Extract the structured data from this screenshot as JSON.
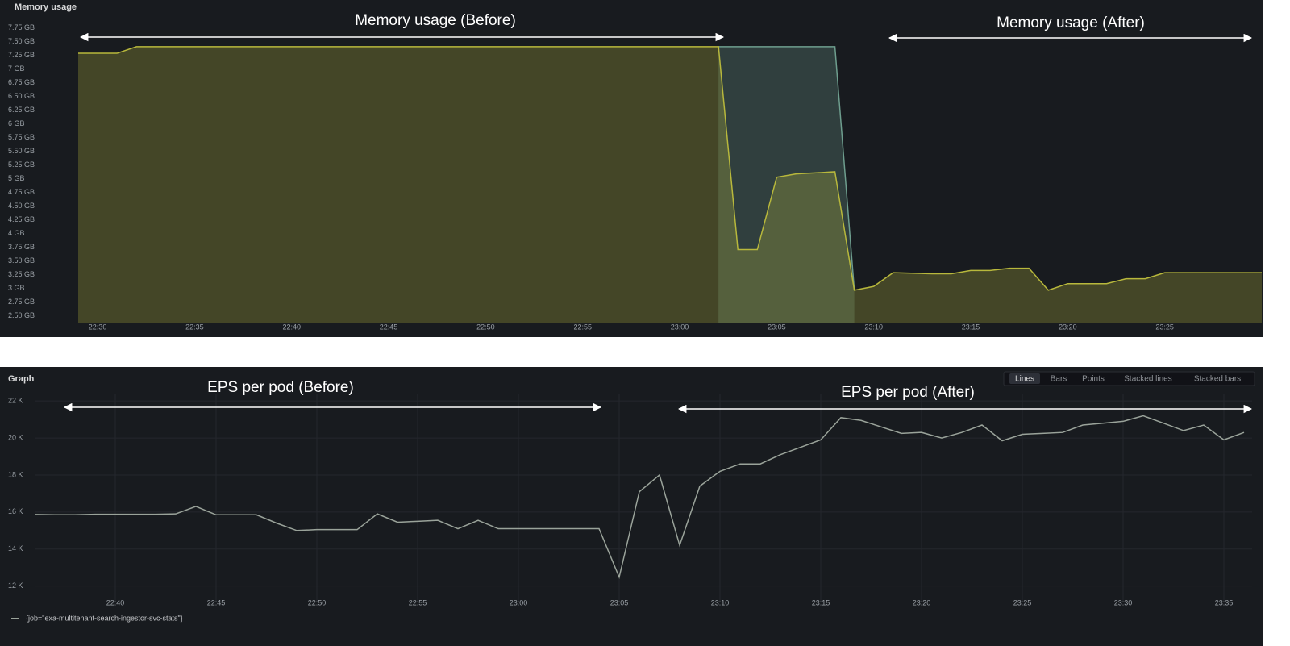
{
  "chart_data": [
    {
      "type": "area",
      "title": "Memory usage",
      "annotations": [
        "Memory usage (Before)",
        "Memory usage (After)"
      ],
      "x": [
        "22:29",
        "22:31",
        "22:32",
        "23:02",
        "23:03",
        "23:04",
        "23:05",
        "23:06",
        "23:08",
        "23:09",
        "23:10",
        "23:11",
        "23:13",
        "23:14",
        "23:15",
        "23:16",
        "23:17",
        "23:18",
        "23:19",
        "23:20",
        "23:22",
        "23:23",
        "23:24",
        "23:25",
        "23:30"
      ],
      "xlim": [
        "22:29",
        "23:30"
      ],
      "xticks": [
        "22:30",
        "22:35",
        "22:40",
        "22:45",
        "22:50",
        "22:55",
        "23:00",
        "23:05",
        "23:10",
        "23:15",
        "23:20",
        "23:25"
      ],
      "ylim": [
        2.38,
        7.82
      ],
      "yticks": [
        {
          "value": 2.5,
          "label": "2.50 GB"
        },
        {
          "value": 2.75,
          "label": "2.75 GB"
        },
        {
          "value": 3,
          "label": "3 GB"
        },
        {
          "value": 3.25,
          "label": "3.25 GB"
        },
        {
          "value": 3.5,
          "label": "3.50 GB"
        },
        {
          "value": 3.75,
          "label": "3.75 GB"
        },
        {
          "value": 4,
          "label": "4 GB"
        },
        {
          "value": 4.25,
          "label": "4.25 GB"
        },
        {
          "value": 4.5,
          "label": "4.50 GB"
        },
        {
          "value": 4.75,
          "label": "4.75 GB"
        },
        {
          "value": 5,
          "label": "5 GB"
        },
        {
          "value": 5.25,
          "label": "5.25 GB"
        },
        {
          "value": 5.5,
          "label": "5.50 GB"
        },
        {
          "value": 5.75,
          "label": "5.75 GB"
        },
        {
          "value": 6,
          "label": "6 GB"
        },
        {
          "value": 6.25,
          "label": "6.25 GB"
        },
        {
          "value": 6.5,
          "label": "6.50 GB"
        },
        {
          "value": 6.75,
          "label": "6.75 GB"
        },
        {
          "value": 7,
          "label": "7 GB"
        },
        {
          "value": 7.25,
          "label": "7.25 GB"
        },
        {
          "value": 7.5,
          "label": "7.50 GB"
        },
        {
          "value": 7.75,
          "label": "7.75 GB"
        }
      ],
      "grid": false,
      "series": [
        {
          "color": "#6e9e8e",
          "values": [
            null,
            null,
            null,
            7.41,
            7.41,
            7.41,
            7.41,
            7.41,
            7.41,
            2.97,
            null,
            null,
            null,
            null,
            null,
            null,
            null,
            null,
            null,
            null,
            null,
            null,
            null,
            null,
            null
          ]
        },
        {
          "color": "#b8b83c",
          "values": [
            7.29,
            7.29,
            7.41,
            7.41,
            3.71,
            3.71,
            5.03,
            5.09,
            5.13,
            2.97,
            3.04,
            3.29,
            3.27,
            3.27,
            3.33,
            3.33,
            3.37,
            3.37,
            2.97,
            3.09,
            3.09,
            3.18,
            3.18,
            3.29,
            3.29
          ]
        }
      ]
    },
    {
      "type": "line",
      "title": "Graph",
      "annotations": [
        "EPS per pod (Before)",
        "EPS per pod (After)"
      ],
      "x": [
        "22:36",
        "22:37",
        "22:38",
        "22:39",
        "22:40",
        "22:41",
        "22:42",
        "22:43",
        "22:44",
        "22:45",
        "22:46",
        "22:47",
        "22:48",
        "22:49",
        "22:50",
        "22:51",
        "22:52",
        "22:53",
        "22:54",
        "22:55",
        "22:56",
        "22:57",
        "22:58",
        "22:59",
        "23:00",
        "23:01",
        "23:02",
        "23:03",
        "23:04",
        "23:05",
        "23:06",
        "23:07",
        "23:08",
        "23:09",
        "23:10",
        "23:11",
        "23:12",
        "23:13",
        "23:14",
        "23:15",
        "23:16",
        "23:17",
        "23:18",
        "23:19",
        "23:20",
        "23:21",
        "23:22",
        "23:23",
        "23:24",
        "23:25",
        "23:26",
        "23:27",
        "23:28",
        "23:29",
        "23:30",
        "23:31",
        "23:32",
        "23:33",
        "23:34",
        "23:35",
        "23:36"
      ],
      "xlim": [
        "22:36",
        "23:36"
      ],
      "xticks": [
        "22:40",
        "22:45",
        "22:50",
        "22:55",
        "23:00",
        "23:05",
        "23:10",
        "23:15",
        "23:20",
        "23:25",
        "23:30",
        "23:35"
      ],
      "ylim": [
        11200,
        22400
      ],
      "yticks": [
        {
          "value": 12000,
          "label": "12 K"
        },
        {
          "value": 14000,
          "label": "14 K"
        },
        {
          "value": 16000,
          "label": "16 K"
        },
        {
          "value": 18000,
          "label": "18 K"
        },
        {
          "value": 20000,
          "label": "20 K"
        },
        {
          "value": 22000,
          "label": "22 K"
        }
      ],
      "grid": true,
      "series": [
        {
          "name": "{job=\"exa-multitenant-search-ingestor-svc-stats\"}",
          "color": "#9aa39a",
          "values": [
            15870,
            15850,
            15850,
            15880,
            15880,
            15880,
            15880,
            15900,
            16300,
            15850,
            15850,
            15850,
            15400,
            15000,
            15050,
            15050,
            15050,
            15900,
            15450,
            15500,
            15550,
            15100,
            15550,
            15100,
            15100,
            15100,
            15100,
            15100,
            15100,
            12480,
            17100,
            18000,
            14200,
            17400,
            18200,
            18600,
            18600,
            19100,
            19500,
            19900,
            21100,
            20950,
            20600,
            20250,
            20300,
            20000,
            20300,
            20700,
            19850,
            20200,
            20250,
            20300,
            20700,
            20800,
            20900,
            21200,
            20800,
            20400,
            20700,
            19900,
            20300
          ]
        }
      ]
    }
  ],
  "view_modes": [
    "Lines",
    "Bars",
    "Points",
    "Stacked lines",
    "Stacked bars"
  ]
}
